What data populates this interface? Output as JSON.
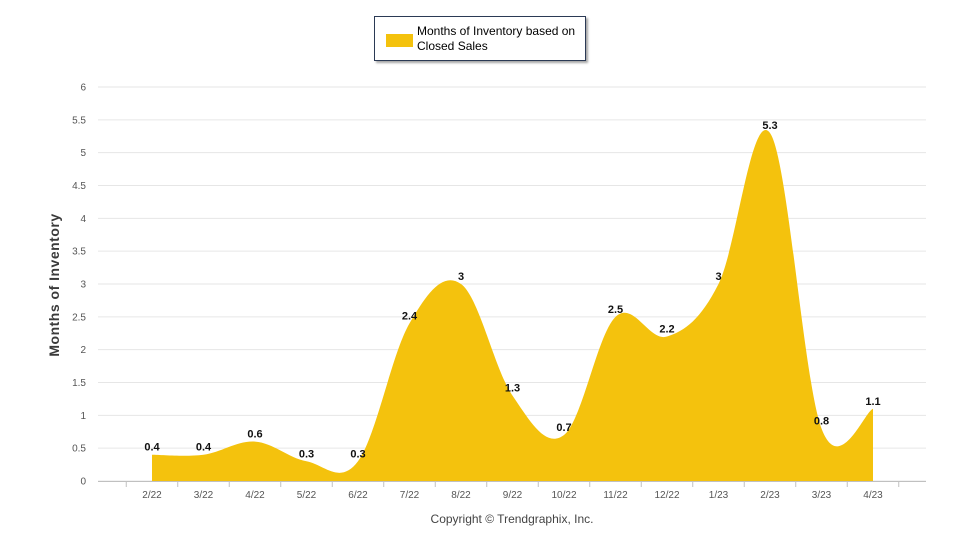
{
  "legend": {
    "label": "Months of Inventory based on Closed Sales"
  },
  "footer": {
    "text": "Copyright © Trendgraphix, Inc."
  },
  "colors": {
    "fill": "#F4C20D",
    "grid": "#e6e6e6",
    "axis": "#c0c0c0"
  },
  "chart_data": {
    "type": "area",
    "title": "",
    "xlabel": "",
    "ylabel": "Months of Inventory",
    "categories": [
      "2/22",
      "3/22",
      "4/22",
      "5/22",
      "6/22",
      "7/22",
      "8/22",
      "9/22",
      "10/22",
      "11/22",
      "12/22",
      "1/23",
      "2/23",
      "3/23",
      "4/23"
    ],
    "series": [
      {
        "name": "Months of Inventory based on Closed Sales",
        "values": [
          0.4,
          0.4,
          0.6,
          0.3,
          0.3,
          2.4,
          3,
          1.3,
          0.7,
          2.5,
          2.2,
          3,
          5.3,
          0.8,
          1.1
        ]
      }
    ],
    "ylim": [
      0,
      6
    ],
    "yticks": [
      "0",
      "0.5",
      "1",
      "1.5",
      "2",
      "2.5",
      "3",
      "3.5",
      "4",
      "4.5",
      "5",
      "5.5",
      "6"
    ],
    "grid": true,
    "legend_position": "top-center",
    "smooth": true
  }
}
